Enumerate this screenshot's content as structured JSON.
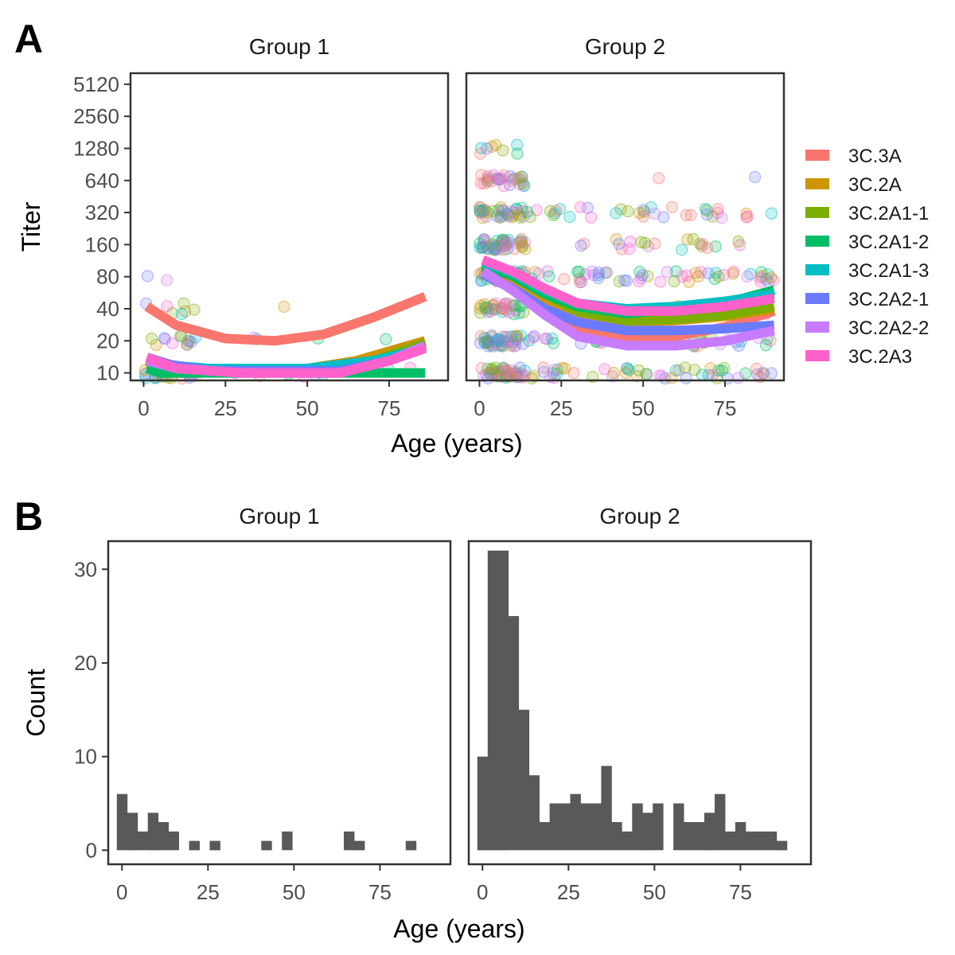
{
  "panels": {
    "A": "A",
    "B": "B"
  },
  "chart_data": [
    {
      "type": "scatter",
      "panel": "A",
      "facets": [
        "Group 1",
        "Group 2"
      ],
      "xlabel": "Age (years)",
      "ylabel": "Titer",
      "x_ticks": [
        0,
        25,
        50,
        75
      ],
      "y_scale": "log2",
      "y_ticks": [
        10,
        20,
        40,
        80,
        160,
        320,
        640,
        1280,
        2560,
        5120
      ],
      "legend_position": "right",
      "series": [
        {
          "name": "3C.3A",
          "color": "#F8766D"
        },
        {
          "name": "3C.2A",
          "color": "#CD9600"
        },
        {
          "name": "3C.2A1-1",
          "color": "#7CAE00"
        },
        {
          "name": "3C.2A1-2",
          "color": "#00BE67"
        },
        {
          "name": "3C.2A1-3",
          "color": "#00BFC4"
        },
        {
          "name": "3C.2A2-1",
          "color": "#6B7BFF"
        },
        {
          "name": "3C.2A2-2",
          "color": "#C77CFF"
        },
        {
          "name": "3C.2A3",
          "color": "#FF61CC"
        }
      ],
      "smooth_lines": {
        "Group 1": {
          "3C.3A": [
            [
              1,
              42
            ],
            [
              10,
              28
            ],
            [
              25,
              21
            ],
            [
              40,
              20
            ],
            [
              55,
              23
            ],
            [
              70,
              33
            ],
            [
              86,
              52
            ]
          ],
          "3C.2A": [
            [
              1,
              13
            ],
            [
              5,
              11
            ],
            [
              15,
              10
            ],
            [
              50,
              11
            ],
            [
              65,
              13
            ],
            [
              75,
              16
            ],
            [
              86,
              20
            ]
          ],
          "3C.2A1-1": [
            [
              1,
              12
            ],
            [
              15,
              10
            ],
            [
              50,
              10.5
            ],
            [
              70,
              13
            ],
            [
              86,
              19
            ]
          ],
          "3C.2A1-2": [
            [
              1,
              11
            ],
            [
              5,
              10
            ],
            [
              86,
              10
            ]
          ],
          "3C.2A1-3": [
            [
              1,
              13
            ],
            [
              5,
              12
            ],
            [
              20,
              11
            ],
            [
              50,
              11
            ],
            [
              70,
              13
            ],
            [
              86,
              17
            ]
          ],
          "3C.2A2-1": [
            [
              1,
              14
            ],
            [
              8,
              12
            ],
            [
              20,
              10.5
            ],
            [
              60,
              10.5
            ],
            [
              75,
              13
            ],
            [
              86,
              18
            ]
          ],
          "3C.2A2-2": [
            [
              1,
              13
            ],
            [
              10,
              11
            ],
            [
              30,
              10
            ],
            [
              60,
              10
            ],
            [
              75,
              13
            ],
            [
              86,
              18
            ]
          ],
          "3C.2A3": [
            [
              1,
              14
            ],
            [
              10,
              11
            ],
            [
              30,
              10
            ],
            [
              60,
              10
            ],
            [
              75,
              13
            ],
            [
              86,
              17
            ]
          ]
        },
        "Group 2": {
          "3C.3A": [
            [
              1,
              95
            ],
            [
              10,
              70
            ],
            [
              20,
              42
            ],
            [
              30,
              27
            ],
            [
              45,
              21
            ],
            [
              60,
              22
            ],
            [
              75,
              27
            ],
            [
              90,
              38
            ]
          ],
          "3C.2A": [
            [
              1,
              100
            ],
            [
              10,
              80
            ],
            [
              20,
              50
            ],
            [
              30,
              35
            ],
            [
              45,
              30
            ],
            [
              60,
              31
            ],
            [
              75,
              34
            ],
            [
              90,
              40
            ]
          ],
          "3C.2A1-1": [
            [
              1,
              105
            ],
            [
              10,
              85
            ],
            [
              20,
              55
            ],
            [
              30,
              38
            ],
            [
              45,
              31
            ],
            [
              60,
              32
            ],
            [
              75,
              35
            ],
            [
              90,
              42
            ]
          ],
          "3C.2A1-2": [
            [
              1,
              100
            ],
            [
              10,
              82
            ],
            [
              20,
              55
            ],
            [
              30,
              42
            ],
            [
              45,
              36
            ],
            [
              60,
              40
            ],
            [
              75,
              45
            ],
            [
              90,
              60
            ]
          ],
          "3C.2A1-3": [
            [
              1,
              110
            ],
            [
              10,
              88
            ],
            [
              20,
              60
            ],
            [
              30,
              45
            ],
            [
              45,
              40
            ],
            [
              60,
              42
            ],
            [
              75,
              47
            ],
            [
              90,
              55
            ]
          ],
          "3C.2A2-1": [
            [
              1,
              85
            ],
            [
              10,
              62
            ],
            [
              20,
              40
            ],
            [
              30,
              30
            ],
            [
              45,
              25
            ],
            [
              60,
              25
            ],
            [
              75,
              26
            ],
            [
              90,
              28
            ]
          ],
          "3C.2A2-2": [
            [
              1,
              90
            ],
            [
              10,
              60
            ],
            [
              20,
              35
            ],
            [
              30,
              22
            ],
            [
              45,
              18
            ],
            [
              60,
              18
            ],
            [
              75,
              20
            ],
            [
              90,
              25
            ]
          ],
          "3C.2A3": [
            [
              1,
              115
            ],
            [
              10,
              90
            ],
            [
              20,
              62
            ],
            [
              30,
              45
            ],
            [
              45,
              38
            ],
            [
              60,
              38
            ],
            [
              75,
              42
            ],
            [
              90,
              50
            ]
          ]
        }
      }
    },
    {
      "type": "bar",
      "panel": "B",
      "subtype": "histogram",
      "facets": [
        "Group 1",
        "Group 2"
      ],
      "xlabel": "Age (years)",
      "ylabel": "Count",
      "x_ticks": [
        0,
        25,
        50,
        75
      ],
      "y_ticks": [
        0,
        10,
        20,
        30
      ],
      "ylim": [
        0,
        33
      ],
      "bin_width": 3,
      "bin_start": -1.5,
      "color": "#595959",
      "counts": {
        "Group 1": [
          6,
          4,
          2,
          4,
          3,
          2,
          0,
          1,
          0,
          1,
          0,
          0,
          0,
          0,
          1,
          0,
          2,
          0,
          0,
          0,
          0,
          0,
          2,
          1,
          0,
          0,
          0,
          0,
          1
        ],
        "Group 2": [
          10,
          32,
          32,
          25,
          15,
          8,
          3,
          5,
          5,
          6,
          5,
          5,
          9,
          3,
          2,
          5,
          4,
          5,
          0,
          5,
          3,
          3,
          4,
          6,
          2,
          3,
          2,
          2,
          2,
          1
        ]
      }
    }
  ]
}
